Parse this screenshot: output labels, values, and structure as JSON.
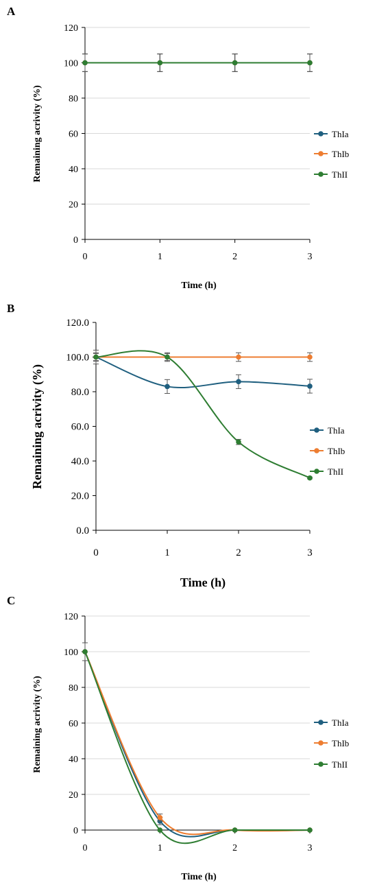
{
  "colors": {
    "ThIa": "#1f5f7f",
    "ThIb": "#ed7d31",
    "ThII": "#2e7d32",
    "grid": "#d9d9d9",
    "axis": "#000000",
    "errorbar": "#555555"
  },
  "chart_data": [
    {
      "panel": "A",
      "type": "line",
      "x": [
        0,
        1,
        2,
        3
      ],
      "xlabel": "Time (h)",
      "ylabel": "Remaining acrivity (%)",
      "ylim": [
        0,
        120
      ],
      "yticks": [
        0,
        20,
        40,
        60,
        80,
        100,
        120
      ],
      "ytick_labels": [
        "0",
        "20",
        "40",
        "60",
        "80",
        "100",
        "120"
      ],
      "xtick_labels": [
        "0",
        "1",
        "2",
        "3"
      ],
      "grid": "horizontal",
      "legend_position": "right",
      "series": [
        {
          "name": "ThIa",
          "values": [
            100,
            100,
            100,
            100
          ],
          "errors": [
            5,
            5,
            5,
            5
          ]
        },
        {
          "name": "ThIb",
          "values": [
            100,
            100,
            100,
            100
          ],
          "errors": [
            5,
            5,
            5,
            5
          ]
        },
        {
          "name": "ThII",
          "values": [
            100,
            100,
            100,
            100
          ],
          "errors": [
            5,
            5,
            5,
            5
          ]
        }
      ]
    },
    {
      "panel": "B",
      "type": "line",
      "x": [
        0,
        1,
        2,
        3
      ],
      "xlabel": "Time (h)",
      "ylabel": "Remaining acrivity (%)",
      "ylim": [
        0,
        120
      ],
      "yticks": [
        0,
        20,
        40,
        60,
        80,
        100,
        120
      ],
      "ytick_labels": [
        "0.0",
        "20.0",
        "40.0",
        "60.0",
        "80.0",
        "100.0",
        "120.0"
      ],
      "xtick_labels": [
        "0",
        "1",
        "2",
        "3"
      ],
      "grid": "none",
      "legend_position": "right",
      "series": [
        {
          "name": "ThIa",
          "values": [
            100,
            83,
            85.8,
            83.2
          ],
          "errors": [
            4,
            4,
            4,
            4
          ]
        },
        {
          "name": "ThIb",
          "values": [
            100,
            100,
            100,
            100
          ],
          "errors": [
            2.5,
            2.5,
            2.5,
            2.5
          ]
        },
        {
          "name": "ThII",
          "values": [
            100,
            100,
            51,
            30.2
          ],
          "errors": [
            2,
            2,
            1.5,
            0.5
          ]
        }
      ]
    },
    {
      "panel": "C",
      "type": "line",
      "x": [
        0,
        1,
        2,
        3
      ],
      "xlabel": "Time (h)",
      "ylabel": "Remaining acrivity (%)",
      "ylim": [
        0,
        120
      ],
      "yticks": [
        0,
        20,
        40,
        60,
        80,
        100,
        120
      ],
      "ytick_labels": [
        "0",
        "20",
        "40",
        "60",
        "80",
        "100",
        "120"
      ],
      "xtick_labels": [
        "0",
        "1",
        "2",
        "3"
      ],
      "grid": "horizontal",
      "legend_position": "right",
      "series": [
        {
          "name": "ThIa",
          "values": [
            100,
            5,
            0,
            0
          ],
          "errors": [
            5,
            2,
            0,
            0
          ]
        },
        {
          "name": "ThIb",
          "values": [
            100,
            7,
            0,
            0
          ],
          "errors": [
            5,
            2,
            0,
            0
          ]
        },
        {
          "name": "ThII",
          "values": [
            100,
            0,
            0,
            0
          ],
          "errors": [
            5,
            0,
            0,
            0
          ]
        }
      ]
    }
  ]
}
